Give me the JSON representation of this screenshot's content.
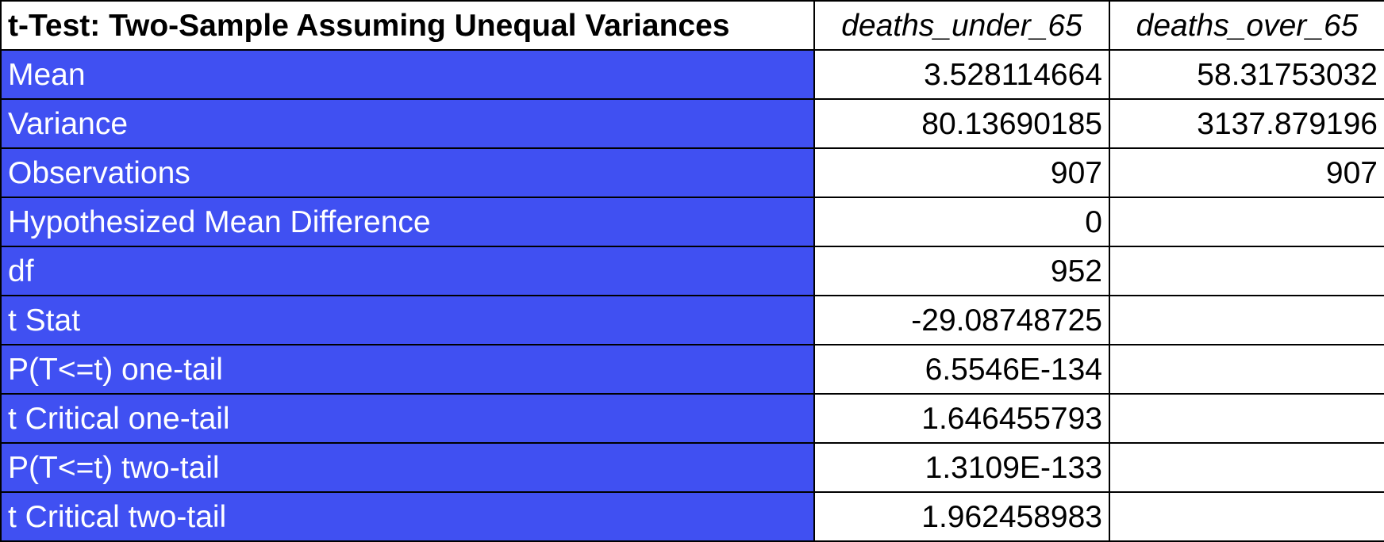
{
  "table": {
    "title": "t-Test: Two-Sample Assuming Unequal Variances",
    "columns": [
      "deaths_under_65",
      "deaths_over_65"
    ],
    "rows": [
      {
        "label": "Mean",
        "v1": "3.528114664",
        "v2": "58.31753032"
      },
      {
        "label": "Variance",
        "v1": "80.13690185",
        "v2": "3137.879196"
      },
      {
        "label": "Observations",
        "v1": "907",
        "v2": "907"
      },
      {
        "label": "Hypothesized Mean Difference",
        "v1": "0",
        "v2": ""
      },
      {
        "label": "df",
        "v1": "952",
        "v2": ""
      },
      {
        "label": "t Stat",
        "v1": "-29.08748725",
        "v2": ""
      },
      {
        "label": "P(T<=t) one-tail",
        "v1": "6.5546E-134",
        "v2": ""
      },
      {
        "label": "t Critical one-tail",
        "v1": "1.646455793",
        "v2": ""
      },
      {
        "label": "P(T<=t) two-tail",
        "v1": "1.3109E-133",
        "v2": ""
      },
      {
        "label": "t Critical two-tail",
        "v1": "1.962458983",
        "v2": ""
      }
    ]
  },
  "colors": {
    "label_fill": "#4050f2",
    "label_text": "#ffffff",
    "grid": "#000000"
  }
}
